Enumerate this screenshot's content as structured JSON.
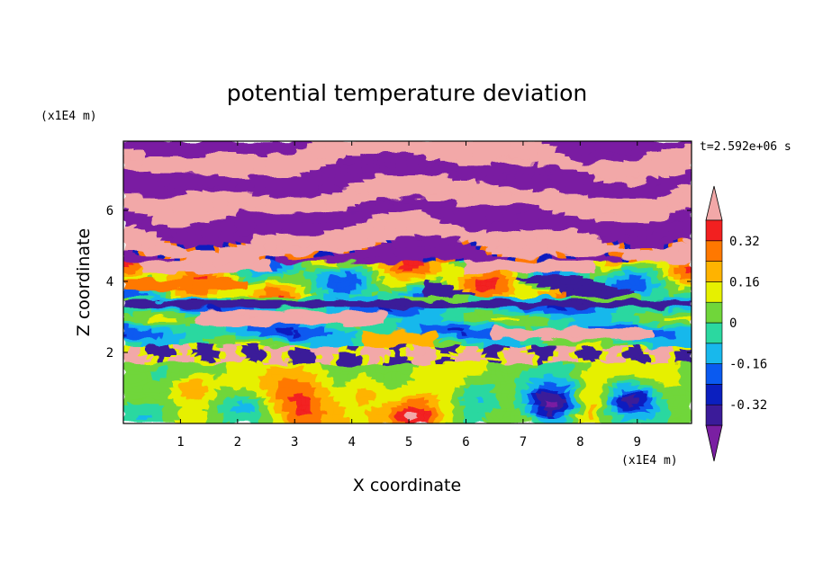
{
  "chart_data": {
    "type": "heatmap",
    "title": "potential temperature deviation",
    "xlabel": "X coordinate",
    "ylabel": "Z coordinate",
    "x_unit": "(x1E4 m)",
    "y_unit": "(x1E4 m)",
    "time_label": "t=2.592e+06 s",
    "xlim": [
      0,
      9.95
    ],
    "ylim": [
      0,
      7.95
    ],
    "x_ticks": [
      1,
      2,
      3,
      4,
      5,
      6,
      7,
      8,
      9
    ],
    "y_ticks": [
      2,
      4,
      6
    ],
    "colorbar": {
      "levels": [
        -0.4,
        -0.32,
        -0.24,
        -0.16,
        -0.08,
        0,
        0.08,
        0.16,
        0.24,
        0.32,
        0.4
      ],
      "colors": [
        "#7a1fa2",
        "#3b1b99",
        "#0b1fbf",
        "#0a5af0",
        "#18b8ec",
        "#2bd8a0",
        "#70d63a",
        "#e6f000",
        "#ffb300",
        "#ff7800",
        "#f22020",
        "#f2a8a8"
      ],
      "tick_labels": [
        "0.32",
        "0.16",
        "0",
        "-0.16",
        "-0.32"
      ],
      "tick_values": [
        0.32,
        0.16,
        0,
        -0.16,
        -0.32
      ],
      "extend": "both"
    },
    "bands": [
      {
        "z_range": [
          6.0,
          7.95
        ],
        "pattern": "alternating",
        "values": [
          -0.45,
          0.45
        ]
      },
      {
        "z_range": [
          4.6,
          6.0
        ],
        "pattern": "alternating",
        "values": [
          -0.45,
          0.45
        ]
      },
      {
        "z_range": [
          3.6,
          4.6
        ],
        "pattern": "mixed",
        "values": [
          0.08,
          0.24,
          -0.32
        ]
      },
      {
        "z_range": [
          2.2,
          3.6
        ],
        "pattern": "mixed",
        "values": [
          -0.04,
          -0.12,
          0.45
        ]
      },
      {
        "z_range": [
          1.7,
          2.2
        ],
        "pattern": "mixed",
        "values": [
          0.45,
          -0.45
        ]
      },
      {
        "z_range": [
          0,
          1.7
        ],
        "pattern": "cells",
        "values": [
          0.06,
          0.24,
          -0.28
        ]
      }
    ]
  }
}
